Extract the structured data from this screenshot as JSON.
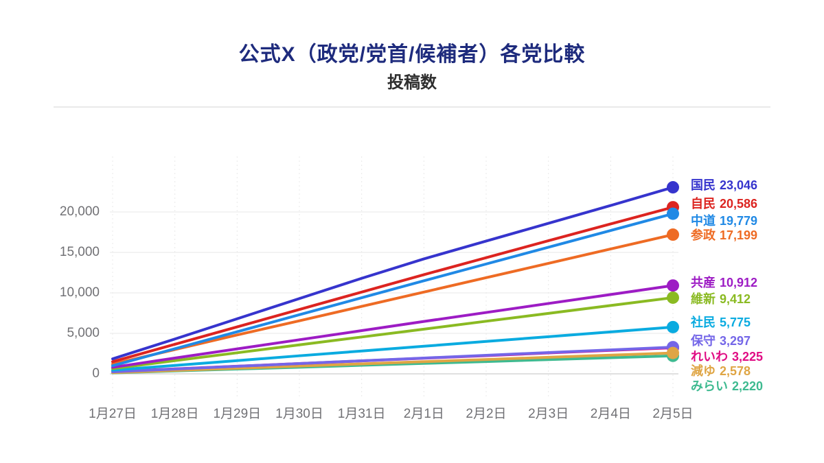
{
  "header": {
    "title": "公式X（政党/党首/候補者）各党比較",
    "subtitle": "投稿数"
  },
  "chart_data": {
    "type": "line",
    "title": "公式X（政党/党首/候補者）各党比較",
    "subtitle": "投稿数",
    "x_labels": [
      "1月27日",
      "1月28日",
      "1月29日",
      "1月30日",
      "1月31日",
      "2月1日",
      "2月2日",
      "2月3日",
      "2月4日",
      "2月5日"
    ],
    "y_ticks": [
      "0",
      "5,000",
      "10,000",
      "15,000",
      "20,000"
    ],
    "y_tick_values": [
      0,
      5000,
      10000,
      15000,
      20000
    ],
    "ylim": [
      0,
      24500
    ],
    "grid": true,
    "legend_position": "inline-right-of-line-end",
    "series": [
      {
        "name": "国民",
        "color": "#3634cd",
        "final_value": 23046,
        "final_display": "23,046",
        "values": [
          1850,
          4300,
          6800,
          9300,
          11800,
          14200,
          16400,
          18600,
          20800,
          23046
        ]
      },
      {
        "name": "自民",
        "color": "#dc2420",
        "final_value": 20586,
        "final_display": "20,586",
        "values": [
          1500,
          3650,
          5800,
          7950,
          10100,
          12250,
          14350,
          16450,
          18520,
          20586
        ]
      },
      {
        "name": "中道",
        "color": "#2089e5",
        "final_value": 19779,
        "final_display": "19,779",
        "values": [
          1000,
          3100,
          5200,
          7300,
          9400,
          11500,
          13570,
          15640,
          17710,
          19779
        ]
      },
      {
        "name": "参政",
        "color": "#ee6b24",
        "final_value": 17199,
        "final_display": "17,199",
        "values": [
          1200,
          3000,
          4800,
          6550,
          8330,
          10100,
          11880,
          13650,
          15430,
          17199
        ]
      },
      {
        "name": "共産",
        "color": "#9d1cc4",
        "final_value": 10912,
        "final_display": "10,912",
        "values": [
          800,
          1950,
          3080,
          4210,
          5340,
          6470,
          7580,
          8690,
          9800,
          10912
        ]
      },
      {
        "name": "維新",
        "color": "#8aba22",
        "final_value": 9412,
        "final_display": "9,412",
        "values": [
          650,
          1630,
          2600,
          3580,
          4550,
          5520,
          6500,
          7470,
          8440,
          9412
        ]
      },
      {
        "name": "社民",
        "color": "#0aabe0",
        "final_value": 5775,
        "final_display": "5,775",
        "values": [
          450,
          1040,
          1630,
          2230,
          2820,
          3410,
          4000,
          4590,
          5180,
          5775
        ]
      },
      {
        "name": "保守",
        "color": "#7466e8",
        "final_value": 3297,
        "final_display": "3,297",
        "values": [
          250,
          590,
          930,
          1270,
          1610,
          1950,
          2290,
          2630,
          2960,
          3297
        ]
      },
      {
        "name": "れいわ",
        "color": "#e00d84",
        "final_value": 3225,
        "final_display": "3,225",
        "values": [
          280,
          610,
          940,
          1270,
          1600,
          1930,
          2250,
          2580,
          2900,
          3225
        ]
      },
      {
        "name": "減ゆ",
        "color": "#dfa544",
        "final_value": 2578,
        "final_display": "2,578",
        "values": [
          150,
          420,
          690,
          960,
          1230,
          1500,
          1770,
          2040,
          2310,
          2578
        ]
      },
      {
        "name": "みらい",
        "color": "#3eba90",
        "final_value": 2220,
        "final_display": "2,220",
        "values": [
          120,
          355,
          590,
          820,
          1055,
          1290,
          1520,
          1755,
          1990,
          2220
        ]
      }
    ]
  }
}
